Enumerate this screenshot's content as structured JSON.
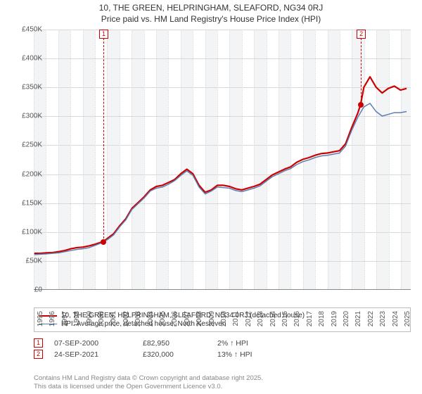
{
  "titles": {
    "line1": "10, THE GREEN, HELPRINGHAM, SLEAFORD, NG34 0RJ",
    "line2": "Price paid vs. HM Land Registry's House Price Index (HPI)"
  },
  "chart": {
    "type": "line",
    "background_color": "#ffffff",
    "band_color": "#f2f4f6",
    "grid_color": "#d9d9d9",
    "x": {
      "min": 1995,
      "max": 2025.8,
      "ticks": [
        1995,
        1996,
        1997,
        1998,
        1999,
        2000,
        2001,
        2002,
        2003,
        2004,
        2005,
        2006,
        2007,
        2008,
        2009,
        2010,
        2011,
        2012,
        2013,
        2014,
        2015,
        2016,
        2017,
        2018,
        2019,
        2020,
        2021,
        2022,
        2023,
        2024,
        2025
      ]
    },
    "y": {
      "min": 0,
      "max": 450000,
      "ticks": [
        0,
        50000,
        100000,
        150000,
        200000,
        250000,
        300000,
        350000,
        400000,
        450000
      ],
      "tick_labels": [
        "£0",
        "£50K",
        "£100K",
        "£150K",
        "£200K",
        "£250K",
        "£300K",
        "£350K",
        "£400K",
        "£450K"
      ]
    },
    "bands": [
      [
        1995,
        1996
      ],
      [
        1997,
        1998
      ],
      [
        1999,
        2000
      ],
      [
        2001,
        2002
      ],
      [
        2003,
        2004
      ],
      [
        2005,
        2006
      ],
      [
        2007,
        2008
      ],
      [
        2009,
        2010
      ],
      [
        2011,
        2012
      ],
      [
        2013,
        2014
      ],
      [
        2015,
        2016
      ],
      [
        2017,
        2018
      ],
      [
        2019,
        2020
      ],
      [
        2021,
        2022
      ],
      [
        2023,
        2024
      ],
      [
        2025,
        2025.8
      ]
    ],
    "series": [
      {
        "id": "price-paid",
        "label": "10, THE GREEN, HELPRINGHAM, SLEAFORD, NG34 0RJ (detached house)",
        "color": "#cc0000",
        "line_width": 2.2,
        "x": [
          1995,
          1995.5,
          1996,
          1996.5,
          1997,
          1997.5,
          1998,
          1998.5,
          1999,
          1999.5,
          2000,
          2000.69,
          2001,
          2001.5,
          2002,
          2002.5,
          2003,
          2003.5,
          2004,
          2004.5,
          2005,
          2005.5,
          2006,
          2006.5,
          2007,
          2007.5,
          2008,
          2008.5,
          2009,
          2009.5,
          2010,
          2010.5,
          2011,
          2011.5,
          2012,
          2012.5,
          2013,
          2013.5,
          2014,
          2014.5,
          2015,
          2015.5,
          2016,
          2016.5,
          2017,
          2017.5,
          2018,
          2018.5,
          2019,
          2019.5,
          2020,
          2020.5,
          2021,
          2021.5,
          2021.73,
          2022,
          2022.5,
          2023,
          2023.5,
          2024,
          2024.5,
          2025,
          2025.5
        ],
        "y": [
          62000,
          62000,
          63000,
          63500,
          65000,
          67000,
          70000,
          72000,
          73000,
          75000,
          78000,
          82950,
          88000,
          96000,
          110000,
          122000,
          140000,
          150000,
          160000,
          172000,
          178000,
          180000,
          185000,
          190000,
          200000,
          208000,
          200000,
          180000,
          168000,
          172000,
          180000,
          180000,
          178000,
          174000,
          172000,
          175000,
          178000,
          182000,
          190000,
          198000,
          203000,
          208000,
          212000,
          220000,
          225000,
          228000,
          232000,
          235000,
          236000,
          238000,
          240000,
          252000,
          280000,
          305000,
          320000,
          350000,
          368000,
          350000,
          340000,
          348000,
          352000,
          345000,
          348000
        ]
      },
      {
        "id": "hpi",
        "label": "HPI: Average price, detached house, North Kesteven",
        "color": "#5b7fb1",
        "line_width": 1.5,
        "x": [
          1995,
          1995.5,
          1996,
          1996.5,
          1997,
          1997.5,
          1998,
          1998.5,
          1999,
          1999.5,
          2000,
          2000.5,
          2001,
          2001.5,
          2002,
          2002.5,
          2003,
          2003.5,
          2004,
          2004.5,
          2005,
          2005.5,
          2006,
          2006.5,
          2007,
          2007.5,
          2008,
          2008.5,
          2009,
          2009.5,
          2010,
          2010.5,
          2011,
          2011.5,
          2012,
          2012.5,
          2013,
          2013.5,
          2014,
          2014.5,
          2015,
          2015.5,
          2016,
          2016.5,
          2017,
          2017.5,
          2018,
          2018.5,
          2019,
          2019.5,
          2020,
          2020.5,
          2021,
          2021.5,
          2022,
          2022.5,
          2023,
          2023.5,
          2024,
          2024.5,
          2025,
          2025.5
        ],
        "y": [
          60000,
          60500,
          61000,
          62000,
          63000,
          65000,
          67000,
          69000,
          70000,
          72000,
          76000,
          80000,
          86000,
          94000,
          108000,
          120000,
          138000,
          148000,
          158000,
          170000,
          175000,
          177000,
          182000,
          188000,
          197000,
          205000,
          197000,
          177000,
          165000,
          170000,
          177000,
          176000,
          175000,
          171000,
          169000,
          172000,
          175000,
          179000,
          187000,
          195000,
          200000,
          205000,
          209000,
          216000,
          221000,
          224000,
          228000,
          231000,
          232000,
          234000,
          236000,
          248000,
          275000,
          298000,
          316000,
          322000,
          308000,
          300000,
          303000,
          306000,
          306000,
          308000
        ]
      }
    ],
    "markers": [
      {
        "n": "1",
        "x": 2000.69,
        "y": 82950,
        "color": "#cc0000"
      },
      {
        "n": "2",
        "x": 2021.73,
        "y": 320000,
        "color": "#cc0000"
      }
    ]
  },
  "legend": {
    "items": [
      {
        "label_path": "chart.series.0.label",
        "color": "#cc0000",
        "width": 2.2
      },
      {
        "label_path": "chart.series.1.label",
        "color": "#5b7fb1",
        "width": 1.5
      }
    ]
  },
  "sales": [
    {
      "n": "1",
      "color": "#cc0000",
      "date": "07-SEP-2000",
      "price": "£82,950",
      "diff": "2% ↑ HPI"
    },
    {
      "n": "2",
      "color": "#cc0000",
      "date": "24-SEP-2021",
      "price": "£320,000",
      "diff": "13% ↑ HPI"
    }
  ],
  "footer": {
    "line1": "Contains HM Land Registry data © Crown copyright and database right 2025.",
    "line2": "This data is licensed under the Open Government Licence v3.0."
  }
}
